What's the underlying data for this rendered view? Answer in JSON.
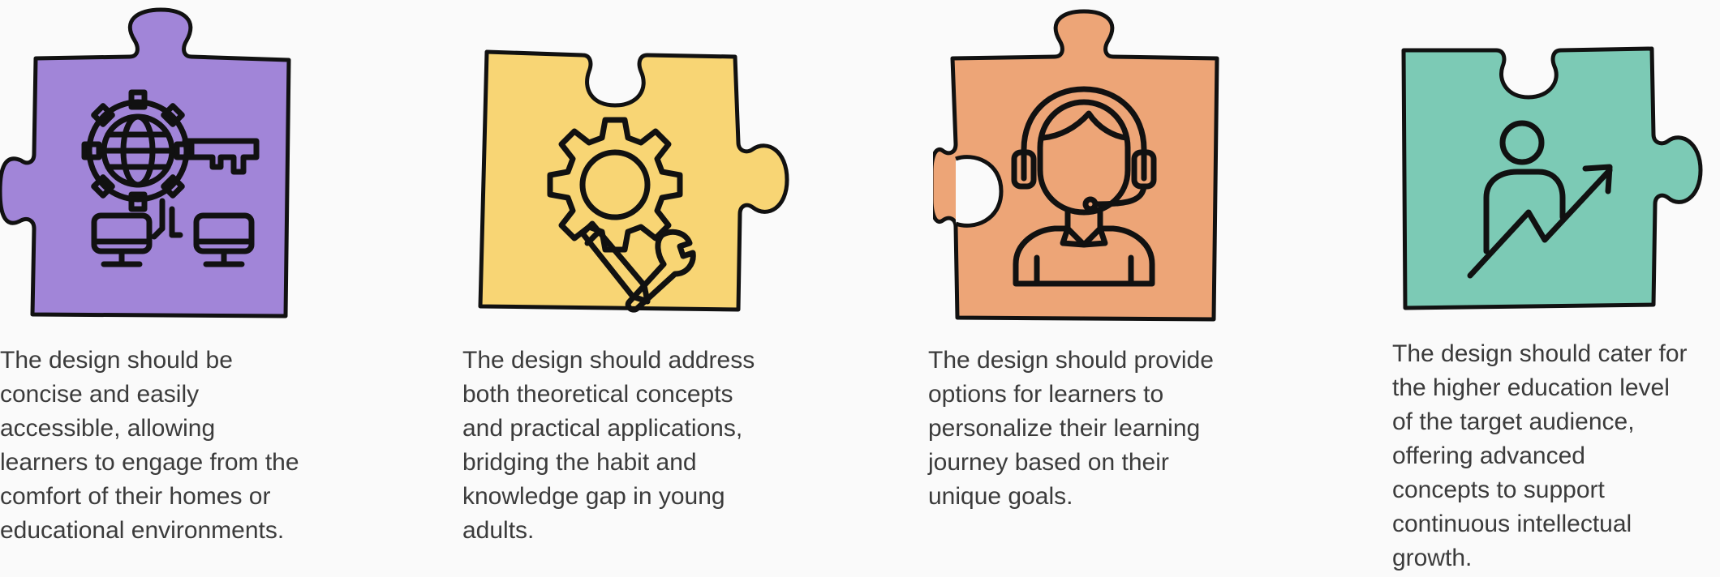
{
  "colors": {
    "purple": "#a185d8",
    "yellow": "#f8d574",
    "orange": "#eda577",
    "teal": "#7ccab5",
    "outline": "#111111",
    "text": "#3b3b3b"
  },
  "pieces": [
    {
      "icon": "network-key-globe-icon",
      "color": "purple",
      "caption": [
        "The design should be",
        "concise and easily",
        "accessible, allowing",
        "learners to engage from the",
        "comfort of their homes or",
        "educational environments."
      ]
    },
    {
      "icon": "gear-pencil-wrench-icon",
      "color": "yellow",
      "caption": [
        "The design should address",
        "both theoretical concepts",
        "and practical applications,",
        "bridging the habit and",
        "knowledge gap in young",
        "adults."
      ]
    },
    {
      "icon": "headset-person-icon",
      "color": "orange",
      "caption": [
        "The design should provide",
        "options for learners to",
        "personalize their learning",
        "journey based on their",
        "unique goals."
      ]
    },
    {
      "icon": "person-growth-arrow-icon",
      "color": "teal",
      "caption": [
        "The design should cater for",
        "the higher education level",
        "of the target audience,",
        "offering advanced",
        "concepts to support",
        "continuous intellectual",
        "growth."
      ]
    }
  ]
}
